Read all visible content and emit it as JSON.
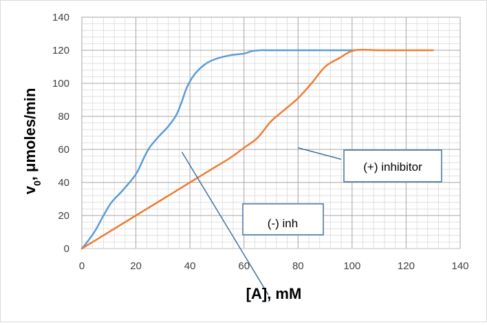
{
  "chart_data": {
    "type": "line",
    "xlabel": "[A], mM",
    "ylabel_main": "v",
    "ylabel_sub": "0",
    "ylabel_rest": ", μmoles/min",
    "xlim": [
      0,
      140
    ],
    "ylim": [
      0,
      140
    ],
    "x_ticks": [
      0,
      20,
      40,
      60,
      80,
      100,
      120,
      140
    ],
    "y_ticks": [
      0,
      20,
      40,
      60,
      80,
      100,
      120,
      140
    ],
    "x_minor_step": 4,
    "y_minor_step": 4,
    "grid": true,
    "series": [
      {
        "color": "#5b9bd5",
        "points": [
          [
            0,
            0
          ],
          [
            2,
            4
          ],
          [
            5,
            11
          ],
          [
            8,
            20
          ],
          [
            11,
            28
          ],
          [
            15,
            35
          ],
          [
            20,
            45
          ],
          [
            23,
            55
          ],
          [
            25,
            61
          ],
          [
            28,
            67
          ],
          [
            32,
            74
          ],
          [
            35,
            81
          ],
          [
            37,
            89
          ],
          [
            39,
            98
          ],
          [
            42,
            106
          ],
          [
            46,
            112
          ],
          [
            50,
            115
          ],
          [
            55,
            117
          ],
          [
            60,
            118
          ],
          [
            63,
            119.5
          ],
          [
            66,
            120
          ],
          [
            70,
            120
          ],
          [
            80,
            120
          ],
          [
            90,
            120
          ],
          [
            101,
            120
          ]
        ]
      },
      {
        "color": "#ed7d31",
        "points": [
          [
            0,
            0
          ],
          [
            10,
            10
          ],
          [
            20,
            20
          ],
          [
            30,
            30
          ],
          [
            40,
            40
          ],
          [
            50,
            50
          ],
          [
            55,
            55
          ],
          [
            60,
            61
          ],
          [
            65,
            67
          ],
          [
            70,
            77
          ],
          [
            75,
            84
          ],
          [
            80,
            91
          ],
          [
            85,
            100
          ],
          [
            90,
            110
          ],
          [
            95,
            115
          ],
          [
            101,
            120
          ],
          [
            110,
            120
          ],
          [
            120,
            120
          ],
          [
            130,
            120
          ]
        ]
      }
    ],
    "annotations": [
      {
        "label": "(-) inh",
        "arrow_from": [
          69,
          -28
        ],
        "arrow_to": [
          37,
          58.5
        ]
      },
      {
        "label": "(+) inhibitor",
        "arrow_from": [
          96,
          54
        ],
        "arrow_to": [
          80,
          61
        ]
      }
    ]
  }
}
